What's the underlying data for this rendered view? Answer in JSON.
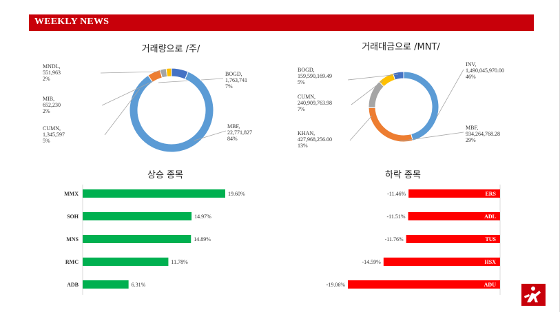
{
  "header": {
    "title": "WEEKLY NEWS"
  },
  "colors": {
    "banner": "#c8000a",
    "rise": "#00b050",
    "fall": "#ff0000"
  },
  "logo_icon": "brand-logo-icon",
  "chart_data": [
    {
      "id": "volume",
      "type": "pie",
      "donut": true,
      "title": "거래량으로 /주/",
      "slices": [
        {
          "name": "BOGD",
          "value_label": "1,763,741",
          "pct_label": "7%",
          "value": 1763741,
          "color": "#4472c4"
        },
        {
          "name": "MBF",
          "value_label": "22,771,827",
          "pct_label": "84%",
          "value": 22771827,
          "color": "#5b9bd5"
        },
        {
          "name": "CUMN",
          "value_label": "1,345,597",
          "pct_label": "5%",
          "value": 1345597,
          "color": "#ed7d31"
        },
        {
          "name": "MIB",
          "value_label": "652,230",
          "pct_label": "2%",
          "value": 652230,
          "color": "#a5a5a5"
        },
        {
          "name": "MNDL",
          "value_label": "551,963",
          "pct_label": "2%",
          "value": 551963,
          "color": "#ffc000"
        }
      ]
    },
    {
      "id": "turnover",
      "type": "pie",
      "donut": true,
      "title": "거래대금으로 /MNT/",
      "slices": [
        {
          "name": "INV",
          "value_label": "1,490,045,970.00",
          "pct_label": "46%",
          "value": 1490045970.0,
          "color": "#5b9bd5"
        },
        {
          "name": "MBF",
          "value_label": "934,264,768.28",
          "pct_label": "29%",
          "value": 934264768.28,
          "color": "#ed7d31"
        },
        {
          "name": "KHAN",
          "value_label": "427,968,256.00",
          "pct_label": "13%",
          "value": 427968256.0,
          "color": "#a5a5a5"
        },
        {
          "name": "CUMN",
          "value_label": "240,909,763.98",
          "pct_label": "7%",
          "value": 240909763.98,
          "color": "#ffc000"
        },
        {
          "name": "BOGD",
          "value_label": "159,590,169.49",
          "pct_label": "5%",
          "value": 159590169.49,
          "color": "#4472c4"
        }
      ]
    },
    {
      "id": "gainers",
      "type": "bar",
      "orientation": "horizontal",
      "title": "상승 종목",
      "categories": [
        "MMX",
        "SOH",
        "MNS",
        "RMC",
        "ADB"
      ],
      "values": [
        19.6,
        14.97,
        14.89,
        11.78,
        6.31
      ],
      "value_labels": [
        "19.60%",
        "14.97%",
        "14.89%",
        "11.78%",
        "6.31%"
      ],
      "color": "#00b050"
    },
    {
      "id": "losers",
      "type": "bar",
      "orientation": "horizontal",
      "title": "하락 종목",
      "categories": [
        "ERS",
        "ADL",
        "TUS",
        "HSX",
        "ADU"
      ],
      "values": [
        -11.46,
        -11.51,
        -11.76,
        -14.59,
        -19.06
      ],
      "value_labels": [
        "-11.46%",
        "-11.51%",
        "-11.76%",
        "-14.59%",
        "-19.06%"
      ],
      "color": "#ff0000"
    }
  ]
}
